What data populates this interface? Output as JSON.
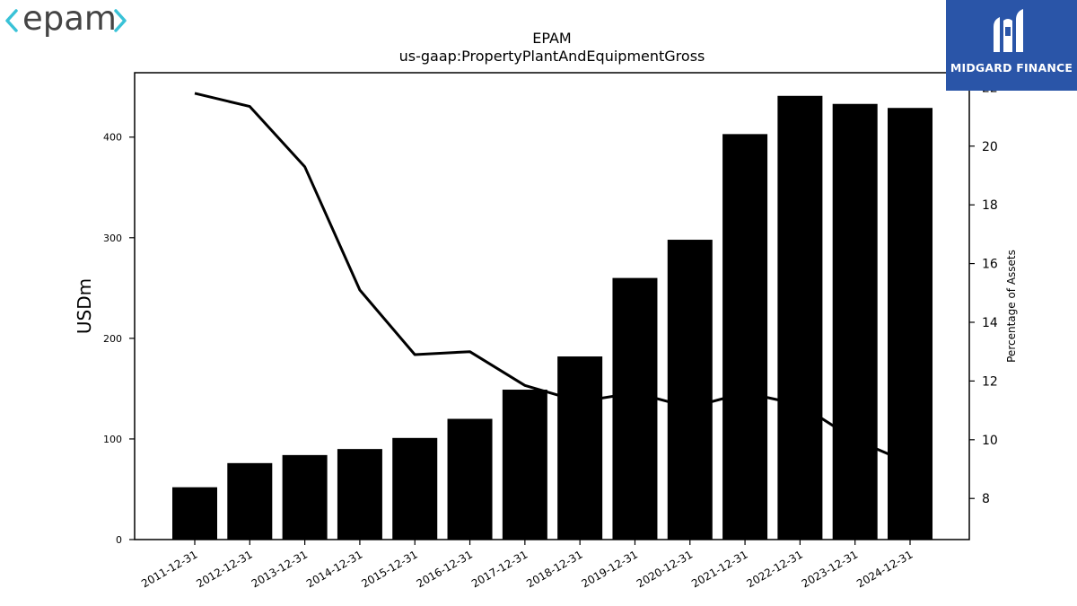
{
  "logos": {
    "left": {
      "icon": "epam-logo",
      "text": "epam",
      "color": "#39c2d7"
    },
    "right": {
      "icon": "midgard-finance-logo",
      "text": "MIDGARD FINANCE",
      "background": "#2a55a8"
    }
  },
  "chart_data": {
    "type": "bar",
    "title": "EPAM",
    "subtitle": "us-gaap:PropertyPlantAndEquipmentGross",
    "ylabel": "USDm",
    "y2label": "Percentage of Assets",
    "ylim": [
      0,
      464
    ],
    "y2lim": [
      6.6,
      22.5
    ],
    "yticks": [
      0,
      100,
      200,
      300,
      400
    ],
    "y2ticks": [
      8,
      10,
      12,
      14,
      16,
      18,
      20,
      22
    ],
    "categories": [
      "2011-12-31",
      "2012-12-31",
      "2013-12-31",
      "2014-12-31",
      "2015-12-31",
      "2016-12-31",
      "2017-12-31",
      "2018-12-31",
      "2019-12-31",
      "2020-12-31",
      "2021-12-31",
      "2022-12-31",
      "2023-12-31",
      "2024-12-31"
    ],
    "series": [
      {
        "kind": "bar",
        "axis": "left",
        "color": "#000000",
        "values": [
          52,
          76,
          84,
          90,
          101,
          120,
          149,
          182,
          260,
          298,
          403,
          441,
          433,
          429
        ]
      },
      {
        "kind": "line",
        "axis": "right",
        "color": "#000000",
        "values": [
          21.8,
          21.35,
          19.3,
          15.1,
          12.9,
          13.0,
          11.85,
          11.3,
          11.6,
          11.1,
          11.6,
          11.2,
          10.0,
          9.2
        ]
      }
    ],
    "grid": false,
    "legend": "none"
  }
}
